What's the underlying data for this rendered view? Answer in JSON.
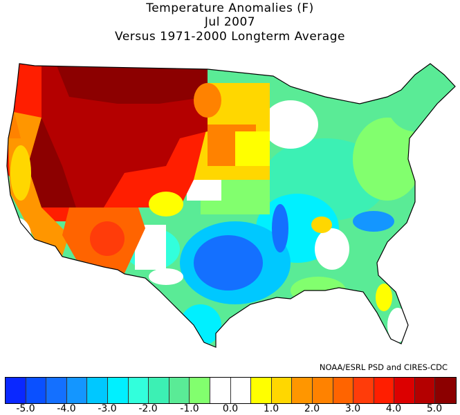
{
  "title": {
    "line1": "Temperature Anomalies (F)",
    "line2": "Jul 2007",
    "line3": "Versus 1971-2000 Longterm Average"
  },
  "credit": "NOAA/ESRL PSD and CIRES-CDC",
  "legend": {
    "colors": [
      "#0a28ff",
      "#0a50ff",
      "#1470ff",
      "#1496ff",
      "#00c8ff",
      "#00f0ff",
      "#32ffdc",
      "#3cf0b4",
      "#5aeb96",
      "#82ff6e",
      "#ffffff",
      "#ffffff",
      "#ffff00",
      "#ffd700",
      "#ff9600",
      "#ff8200",
      "#ff6400",
      "#ff3c0a",
      "#ff1e00",
      "#dc0000",
      "#b40000",
      "#8c0000"
    ],
    "labels": [
      "-5.0",
      "-4.0",
      "-3.0",
      "-2.0",
      "-1.0",
      "0.0",
      "1.0",
      "2.0",
      "3.0",
      "4.0",
      "5.0"
    ]
  }
}
